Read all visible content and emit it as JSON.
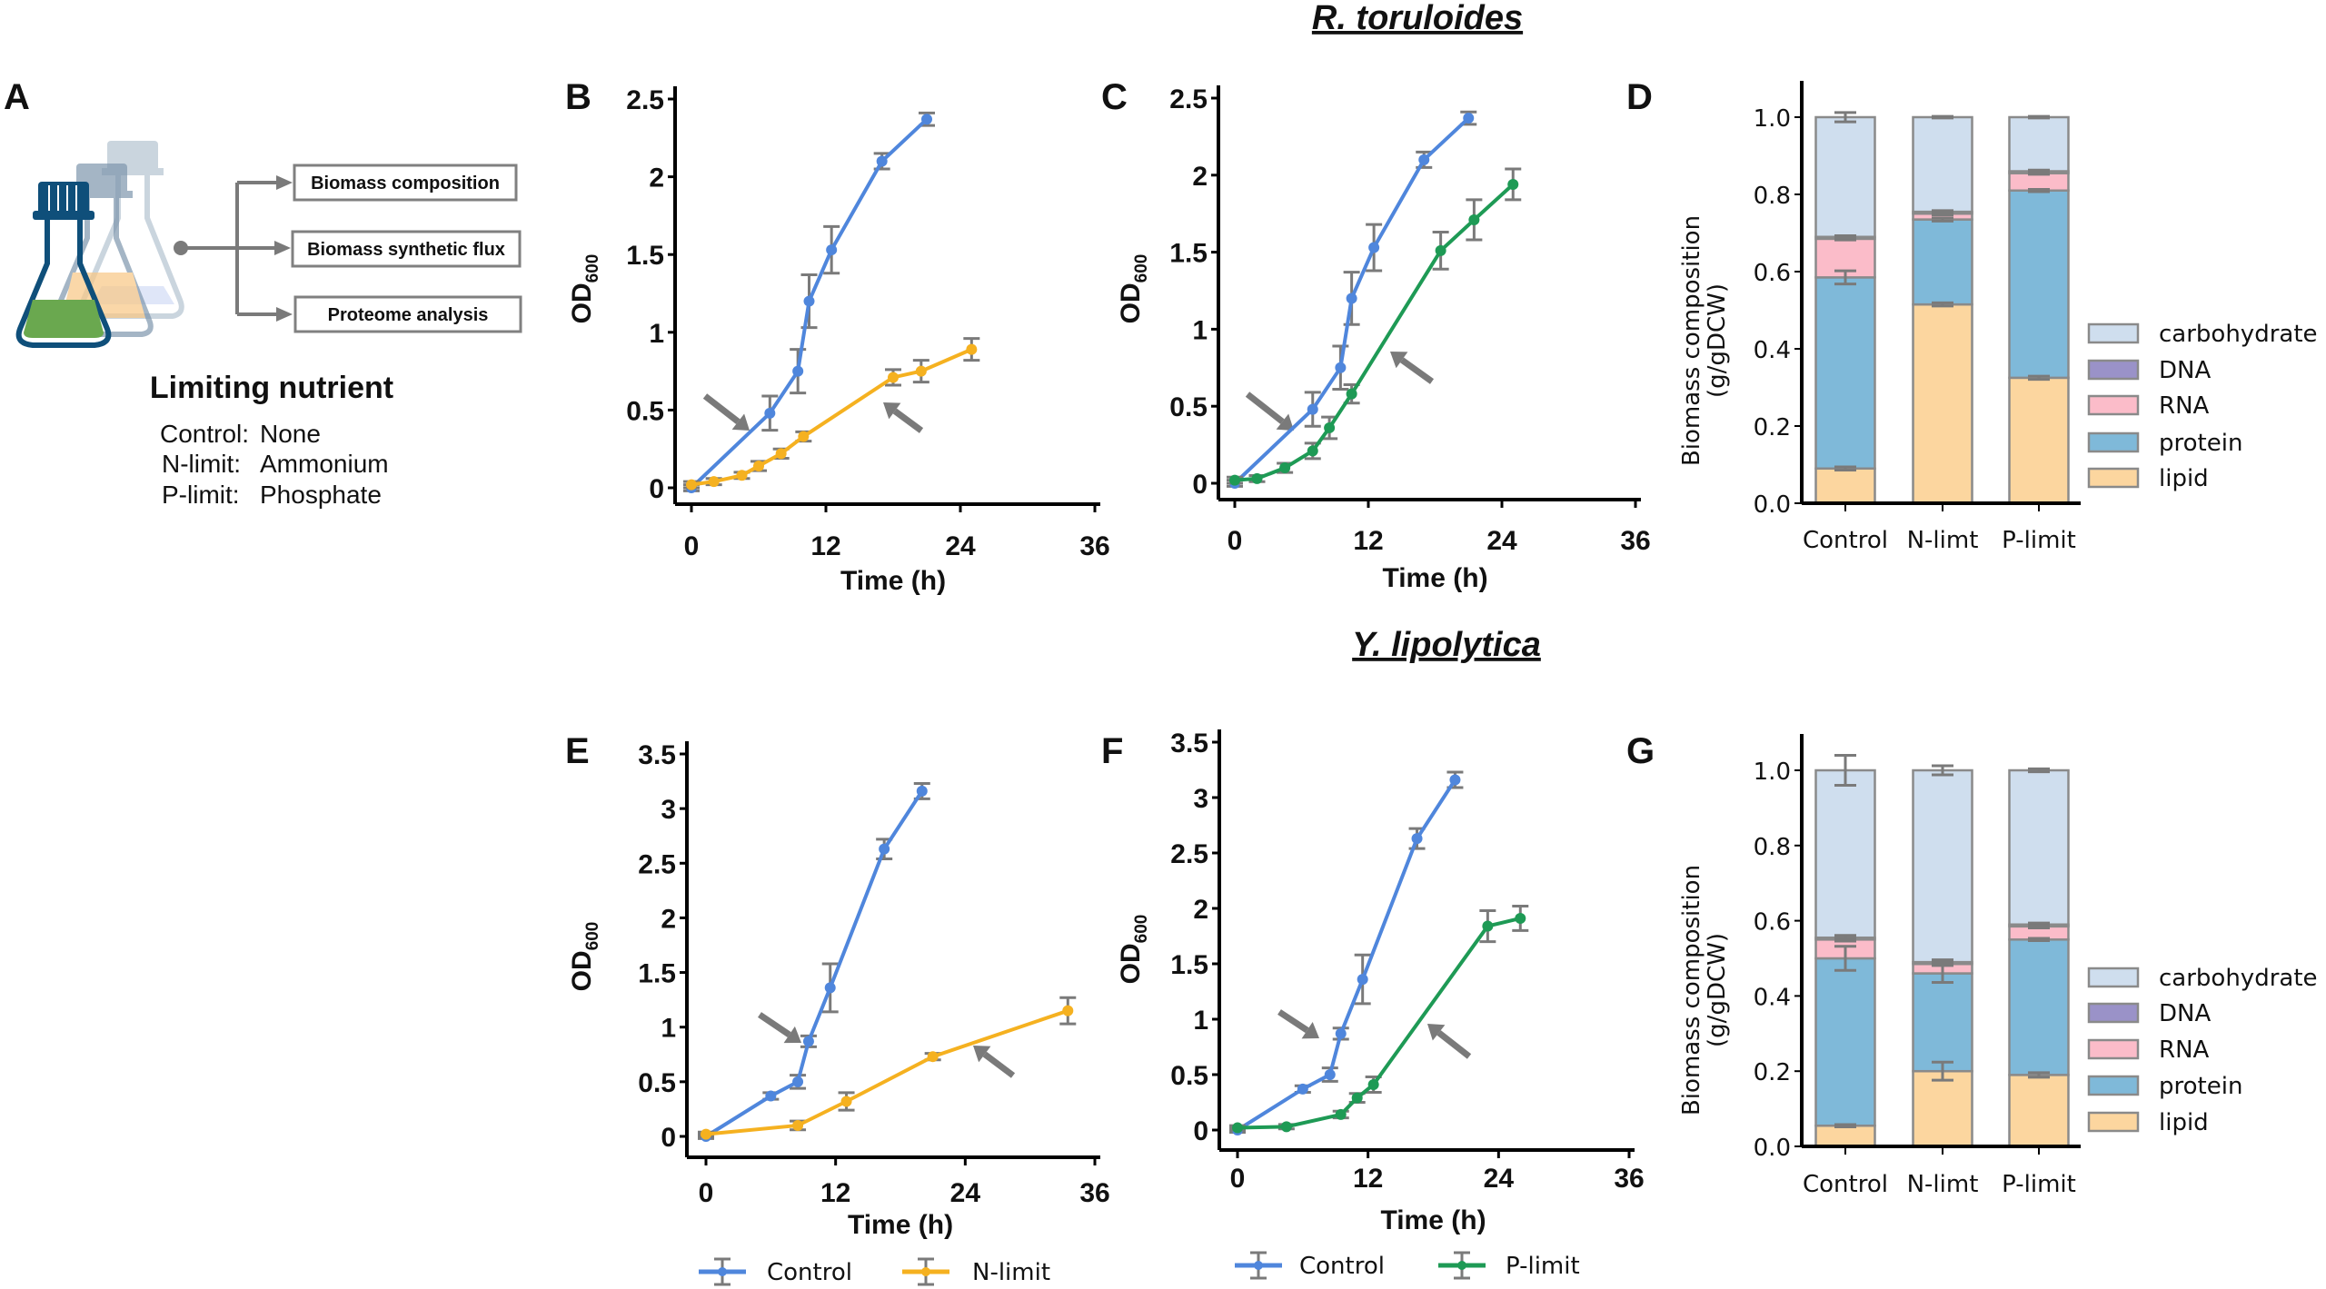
{
  "titles": {
    "top": "R. toruloides",
    "bottom": "Y. lipolytica"
  },
  "panel_labels": {
    "A": "A",
    "B": "B",
    "C": "C",
    "D": "D",
    "E": "E",
    "F": "F",
    "G": "G"
  },
  "panel_a": {
    "outputs": [
      "Biomass composition",
      "Biomass synthetic flux",
      "Proteome analysis"
    ],
    "heading": "Limiting nutrient",
    "conditions": [
      {
        "name": "Control:",
        "nutrient": "None"
      },
      {
        "name": "N-limit:",
        "nutrient": "Ammonium"
      },
      {
        "name": "P-limit:",
        "nutrient": "Phosphate"
      }
    ],
    "flask_colors": [
      "#6aa84f",
      "#f9c784",
      "#b9c8f0"
    ]
  },
  "colors": {
    "control": "#4f86dc",
    "n_limit": "#f5b120",
    "p_limit": "#1e9a55",
    "error": "#7a7a7a",
    "arrow": "#7a7a7a",
    "carbohydrate": "#cfdeee",
    "DNA": "#9a92c8",
    "RNA": "#fbbcc9",
    "protein": "#7fb9d9",
    "lipid": "#fcd69f",
    "bar_edge": "#8a8a8a"
  },
  "chart_data": [
    {
      "panel": "B",
      "type": "line",
      "organism": "R. toruloides",
      "xlabel": "Time (h)",
      "ylabel": "OD",
      "ylabel_sub": "600",
      "xlim": [
        0,
        36
      ],
      "ylim": [
        0,
        2.5
      ],
      "xticks": [
        0,
        12,
        24,
        36
      ],
      "xtick_labels": [
        "0",
        "12",
        "24",
        "36"
      ],
      "yticks": [
        0,
        0.5,
        1,
        1.5,
        2,
        2.5
      ],
      "ytick_labels": [
        "0",
        "0.5",
        "1",
        "1.5",
        "2",
        "2.5"
      ],
      "series": [
        {
          "name": "Control",
          "color_key": "control",
          "x": [
            0,
            7,
            9.5,
            10.5,
            12.5,
            17,
            21
          ],
          "y": [
            0,
            0.48,
            0.75,
            1.2,
            1.53,
            2.1,
            2.37
          ],
          "err": [
            0.02,
            0.11,
            0.14,
            0.17,
            0.15,
            0.05,
            0.04
          ]
        },
        {
          "name": "N-limit",
          "color_key": "n_limit",
          "x": [
            0,
            2,
            4.5,
            6,
            8,
            10,
            18,
            20.5,
            25
          ],
          "y": [
            0.02,
            0.04,
            0.08,
            0.14,
            0.22,
            0.33,
            0.71,
            0.75,
            0.89
          ],
          "err": [
            0.02,
            0.02,
            0.02,
            0.03,
            0.03,
            0.03,
            0.05,
            0.07,
            0.07
          ]
        }
      ]
    },
    {
      "panel": "C",
      "type": "line",
      "organism": "R. toruloides",
      "xlabel": "Time (h)",
      "ylabel": "OD",
      "ylabel_sub": "600",
      "xlim": [
        0,
        36
      ],
      "ylim": [
        0,
        2.5
      ],
      "xticks": [
        0,
        12,
        24,
        36
      ],
      "xtick_labels": [
        "0",
        "12",
        "24",
        "36"
      ],
      "yticks": [
        0,
        0.5,
        1,
        1.5,
        2,
        2.5
      ],
      "ytick_labels": [
        "0",
        "0.5",
        "1",
        "1.5",
        "2",
        "2.5"
      ],
      "series": [
        {
          "name": "Control",
          "color_key": "control",
          "x": [
            0,
            7,
            9.5,
            10.5,
            12.5,
            17,
            21
          ],
          "y": [
            0,
            0.48,
            0.75,
            1.2,
            1.53,
            2.1,
            2.37
          ],
          "err": [
            0.02,
            0.11,
            0.14,
            0.17,
            0.15,
            0.05,
            0.04
          ]
        },
        {
          "name": "P-limit",
          "color_key": "p_limit",
          "x": [
            0,
            2,
            4.5,
            7,
            8.5,
            10.5,
            18.5,
            21.5,
            25
          ],
          "y": [
            0.02,
            0.03,
            0.1,
            0.21,
            0.36,
            0.58,
            1.51,
            1.71,
            1.94
          ],
          "err": [
            0.02,
            0.02,
            0.03,
            0.05,
            0.07,
            0.06,
            0.12,
            0.13,
            0.1
          ]
        }
      ]
    },
    {
      "panel": "D",
      "type": "bar",
      "stacked": true,
      "organism": "R. toruloides",
      "ylabel": "Biomass composition",
      "ylabel2": "(g/gDCW)",
      "ylim": [
        0,
        1.0
      ],
      "yticks": [
        0,
        0.2,
        0.4,
        0.6,
        0.8,
        1.0
      ],
      "ytick_labels": [
        "0.0",
        "0.2",
        "0.4",
        "0.6",
        "0.8",
        "1.0"
      ],
      "categories": [
        "Control",
        "N-limt",
        "P-limit"
      ],
      "legend": [
        "carbohydrate",
        "DNA",
        "RNA",
        "protein",
        "lipid"
      ],
      "legend_position": "right",
      "series": [
        {
          "name": "lipid",
          "values": [
            0.09,
            0.515,
            0.325
          ],
          "err": [
            0.004,
            0.004,
            0.004
          ]
        },
        {
          "name": "protein",
          "values": [
            0.495,
            0.22,
            0.485
          ],
          "err": [
            0.017,
            0.004,
            0.003
          ]
        },
        {
          "name": "RNA",
          "values": [
            0.1,
            0.015,
            0.045
          ],
          "err": [
            0.003,
            0.003,
            0.003
          ]
        },
        {
          "name": "DNA",
          "values": [
            0.005,
            0.005,
            0.005
          ],
          "err": [
            0.003,
            0.003,
            0.003
          ]
        },
        {
          "name": "carbohydrate",
          "values": [
            0.31,
            0.245,
            0.14
          ],
          "err": [
            0.012,
            0.002,
            0.002
          ]
        }
      ]
    },
    {
      "panel": "E",
      "type": "line",
      "organism": "Y. lipolytica",
      "xlabel": "Time (h)",
      "ylabel": "OD",
      "ylabel_sub": "600",
      "xlim": [
        0,
        36
      ],
      "ylim": [
        0,
        3.5
      ],
      "xticks": [
        0,
        12,
        24,
        36
      ],
      "xtick_labels": [
        "0",
        "12",
        "24",
        "36"
      ],
      "yticks": [
        0,
        0.5,
        1,
        1.5,
        2,
        2.5,
        3,
        3.5
      ],
      "ytick_labels": [
        "0",
        "0.5",
        "1",
        "1.5",
        "2",
        "2.5",
        "3",
        "3.5"
      ],
      "legend_position": "bottom",
      "series": [
        {
          "name": "Control",
          "color_key": "control",
          "x": [
            0,
            6,
            8.5,
            9.5,
            11.5,
            16.5,
            20
          ],
          "y": [
            0,
            0.37,
            0.5,
            0.87,
            1.36,
            2.63,
            3.16
          ],
          "err": [
            0.02,
            0.03,
            0.06,
            0.05,
            0.22,
            0.09,
            0.07
          ]
        },
        {
          "name": "N-limit",
          "color_key": "n_limit",
          "x": [
            0,
            8.5,
            13,
            21,
            33.5
          ],
          "y": [
            0.02,
            0.1,
            0.32,
            0.73,
            1.15
          ],
          "err": [
            0.02,
            0.04,
            0.08,
            0.03,
            0.12
          ]
        }
      ]
    },
    {
      "panel": "F",
      "type": "line",
      "organism": "Y. lipolytica",
      "xlabel": "Time (h)",
      "ylabel": "OD",
      "ylabel_sub": "600",
      "xlim": [
        0,
        36
      ],
      "ylim": [
        0,
        3.5
      ],
      "xticks": [
        0,
        12,
        24,
        36
      ],
      "xtick_labels": [
        "0",
        "12",
        "24",
        "36"
      ],
      "yticks": [
        0,
        0.5,
        1,
        1.5,
        2,
        2.5,
        3,
        3.5
      ],
      "ytick_labels": [
        "0",
        "0.5",
        "1",
        "1.5",
        "2",
        "2.5",
        "3",
        "3.5"
      ],
      "legend_position": "bottom",
      "series": [
        {
          "name": "Control",
          "color_key": "control",
          "x": [
            0,
            6,
            8.5,
            9.5,
            11.5,
            16.5,
            20
          ],
          "y": [
            0,
            0.37,
            0.5,
            0.87,
            1.36,
            2.63,
            3.16
          ],
          "err": [
            0.02,
            0.03,
            0.06,
            0.05,
            0.22,
            0.09,
            0.07
          ]
        },
        {
          "name": "P-limit",
          "color_key": "p_limit",
          "x": [
            0,
            4.5,
            9.5,
            11,
            12.5,
            23,
            26
          ],
          "y": [
            0.02,
            0.03,
            0.14,
            0.29,
            0.41,
            1.84,
            1.91
          ],
          "err": [
            0.02,
            0.02,
            0.03,
            0.04,
            0.07,
            0.14,
            0.11
          ]
        }
      ]
    },
    {
      "panel": "G",
      "type": "bar",
      "stacked": true,
      "organism": "Y. lipolytica",
      "ylabel": "Biomass composition",
      "ylabel2": "(g/gDCW)",
      "ylim": [
        0,
        1.0
      ],
      "yticks": [
        0,
        0.2,
        0.4,
        0.6,
        0.8,
        1.0
      ],
      "ytick_labels": [
        "0.0",
        "0.2",
        "0.4",
        "0.6",
        "0.8",
        "1.0"
      ],
      "categories": [
        "Control",
        "N-limt",
        "P-limit"
      ],
      "legend": [
        "carbohydrate",
        "DNA",
        "RNA",
        "protein",
        "lipid"
      ],
      "legend_position": "right",
      "series": [
        {
          "name": "lipid",
          "values": [
            0.055,
            0.2,
            0.19
          ],
          "err": [
            0.003,
            0.024,
            0.006
          ]
        },
        {
          "name": "protein",
          "values": [
            0.445,
            0.26,
            0.36
          ],
          "err": [
            0.032,
            0.024,
            0.003
          ]
        },
        {
          "name": "RNA",
          "values": [
            0.05,
            0.025,
            0.035
          ],
          "err": [
            0.004,
            0.004,
            0.004
          ]
        },
        {
          "name": "DNA",
          "values": [
            0.005,
            0.005,
            0.005
          ],
          "err": [
            0.006,
            0.006,
            0.004
          ]
        },
        {
          "name": "carbohydrate",
          "values": [
            0.445,
            0.51,
            0.41
          ],
          "err": [
            0.04,
            0.012,
            0.004
          ]
        }
      ]
    }
  ]
}
